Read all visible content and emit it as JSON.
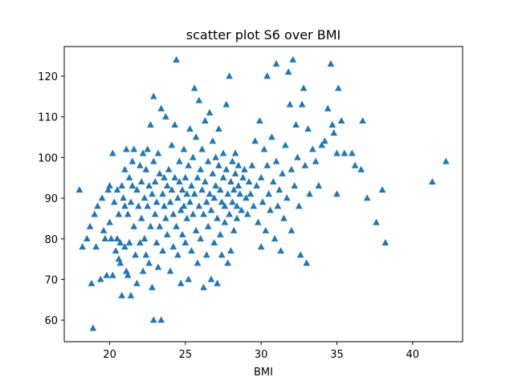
{
  "chart_data": {
    "type": "scatter",
    "title": "scatter plot S6 over BMI",
    "xlabel": "BMI",
    "ylabel": "",
    "xlim": [
      17.0,
      43.3
    ],
    "ylim": [
      54.7,
      127.3
    ],
    "xticks": [
      20,
      25,
      30,
      35,
      40
    ],
    "yticks": [
      60,
      70,
      80,
      90,
      100,
      110,
      120
    ],
    "xtick_labels": [
      "20",
      "25",
      "30",
      "35",
      "40"
    ],
    "ytick_labels": [
      "60",
      "70",
      "80",
      "90",
      "100",
      "110",
      "120"
    ],
    "marker": "triangle-up",
    "color": "#1f77b4",
    "grid": false,
    "points": [
      [
        18.0,
        92
      ],
      [
        18.2,
        78
      ],
      [
        18.5,
        80
      ],
      [
        18.7,
        83
      ],
      [
        18.8,
        69
      ],
      [
        18.9,
        58
      ],
      [
        19.0,
        86
      ],
      [
        19.1,
        78
      ],
      [
        19.2,
        88
      ],
      [
        19.4,
        70
      ],
      [
        19.5,
        90
      ],
      [
        19.6,
        82
      ],
      [
        19.7,
        80
      ],
      [
        19.8,
        71
      ],
      [
        19.9,
        92
      ],
      [
        20.0,
        84
      ],
      [
        20.0,
        93
      ],
      [
        20.1,
        80
      ],
      [
        20.2,
        71
      ],
      [
        20.2,
        101
      ],
      [
        20.3,
        89
      ],
      [
        20.4,
        77
      ],
      [
        20.5,
        92
      ],
      [
        20.5,
        80
      ],
      [
        20.6,
        75
      ],
      [
        20.6,
        86
      ],
      [
        20.7,
        74
      ],
      [
        20.7,
        79
      ],
      [
        20.8,
        93
      ],
      [
        20.8,
        66
      ],
      [
        20.9,
        90
      ],
      [
        21.0,
        88
      ],
      [
        21.0,
        78
      ],
      [
        21.0,
        97
      ],
      [
        21.1,
        102
      ],
      [
        21.1,
        72
      ],
      [
        21.2,
        86
      ],
      [
        21.2,
        71
      ],
      [
        21.3,
        95
      ],
      [
        21.3,
        79
      ],
      [
        21.4,
        66
      ],
      [
        21.4,
        89
      ],
      [
        21.5,
        99
      ],
      [
        21.5,
        93
      ],
      [
        21.6,
        102
      ],
      [
        21.6,
        83
      ],
      [
        21.7,
        76
      ],
      [
        21.8,
        92
      ],
      [
        21.8,
        69
      ],
      [
        21.9,
        88
      ],
      [
        22.0,
        98
      ],
      [
        22.0,
        79
      ],
      [
        22.1,
        94
      ],
      [
        22.1,
        85
      ],
      [
        22.2,
        101
      ],
      [
        22.2,
        72
      ],
      [
        22.3,
        90
      ],
      [
        22.3,
        80
      ],
      [
        22.4,
        97
      ],
      [
        22.4,
        76
      ],
      [
        22.5,
        88
      ],
      [
        22.5,
        102
      ],
      [
        22.6,
        93
      ],
      [
        22.6,
        74
      ],
      [
        22.7,
        83
      ],
      [
        22.7,
        108
      ],
      [
        22.8,
        91
      ],
      [
        22.8,
        68
      ],
      [
        22.9,
        99
      ],
      [
        22.9,
        115
      ],
      [
        22.9,
        60
      ],
      [
        23.0,
        86
      ],
      [
        23.0,
        94
      ],
      [
        23.1,
        79
      ],
      [
        23.1,
        89
      ],
      [
        23.2,
        73
      ],
      [
        23.2,
        101
      ],
      [
        23.3,
        96
      ],
      [
        23.3,
        83
      ],
      [
        23.4,
        112
      ],
      [
        23.4,
        60
      ],
      [
        23.5,
        91
      ],
      [
        23.5,
        77
      ],
      [
        23.6,
        88
      ],
      [
        23.6,
        95
      ],
      [
        23.7,
        85
      ],
      [
        23.7,
        110
      ],
      [
        23.8,
        93
      ],
      [
        23.8,
        81
      ],
      [
        23.9,
        97
      ],
      [
        24.0,
        89
      ],
      [
        24.0,
        72
      ],
      [
        24.1,
        92
      ],
      [
        24.1,
        103
      ],
      [
        24.2,
        86
      ],
      [
        24.2,
        78
      ],
      [
        24.3,
        95
      ],
      [
        24.3,
        108
      ],
      [
        24.4,
        124
      ],
      [
        24.4,
        83
      ],
      [
        24.5,
        90
      ],
      [
        24.5,
        76
      ],
      [
        24.6,
        94
      ],
      [
        24.6,
        99
      ],
      [
        24.7,
        87
      ],
      [
        24.7,
        69
      ],
      [
        24.8,
        92
      ],
      [
        24.8,
        81
      ],
      [
        24.9,
        102
      ],
      [
        24.9,
        88
      ],
      [
        25.0,
        95
      ],
      [
        25.0,
        79
      ],
      [
        25.1,
        91
      ],
      [
        25.1,
        85
      ],
      [
        25.2,
        98
      ],
      [
        25.2,
        70
      ],
      [
        25.3,
        89
      ],
      [
        25.3,
        107
      ],
      [
        25.4,
        93
      ],
      [
        25.4,
        77
      ],
      [
        25.5,
        100
      ],
      [
        25.5,
        86
      ],
      [
        25.6,
        117
      ],
      [
        25.6,
        91
      ],
      [
        25.7,
        82
      ],
      [
        25.7,
        105
      ],
      [
        25.8,
        95
      ],
      [
        25.8,
        74
      ],
      [
        25.9,
        88
      ],
      [
        25.9,
        114
      ],
      [
        26.0,
        97
      ],
      [
        26.0,
        80
      ],
      [
        26.1,
        92
      ],
      [
        26.1,
        102
      ],
      [
        26.2,
        86
      ],
      [
        26.2,
        68
      ],
      [
        26.3,
        94
      ],
      [
        26.3,
        109
      ],
      [
        26.4,
        89
      ],
      [
        26.4,
        76
      ],
      [
        26.5,
        99
      ],
      [
        26.5,
        83
      ],
      [
        26.6,
        91
      ],
      [
        26.6,
        111
      ],
      [
        26.7,
        87
      ],
      [
        26.7,
        70
      ],
      [
        26.8,
        96
      ],
      [
        26.8,
        104
      ],
      [
        26.9,
        90
      ],
      [
        26.9,
        79
      ],
      [
        27.0,
        93
      ],
      [
        27.0,
        100
      ],
      [
        27.1,
        85
      ],
      [
        27.1,
        69
      ],
      [
        27.2,
        98
      ],
      [
        27.2,
        107
      ],
      [
        27.3,
        92
      ],
      [
        27.3,
        81
      ],
      [
        27.4,
        89
      ],
      [
        27.4,
        76
      ],
      [
        27.5,
        95
      ],
      [
        27.5,
        101
      ],
      [
        27.6,
        88
      ],
      [
        27.6,
        84
      ],
      [
        27.7,
        113
      ],
      [
        27.7,
        97
      ],
      [
        27.8,
        91
      ],
      [
        27.8,
        74
      ],
      [
        27.9,
        120
      ],
      [
        27.9,
        86
      ],
      [
        28.0,
        94
      ],
      [
        28.0,
        77
      ],
      [
        28.1,
        99
      ],
      [
        28.1,
        89
      ],
      [
        28.2,
        92
      ],
      [
        28.2,
        82
      ],
      [
        28.3,
        96
      ],
      [
        28.3,
        101
      ],
      [
        28.4,
        88
      ],
      [
        28.4,
        85
      ],
      [
        28.5,
        93
      ],
      [
        28.5,
        98
      ],
      [
        28.6,
        91
      ],
      [
        28.7,
        87
      ],
      [
        28.8,
        95
      ],
      [
        28.9,
        97
      ],
      [
        29.0,
        90
      ],
      [
        29.1,
        86
      ],
      [
        29.2,
        94
      ],
      [
        29.3,
        91
      ],
      [
        29.4,
        98
      ],
      [
        29.5,
        88
      ],
      [
        29.6,
        104
      ],
      [
        29.7,
        93
      ],
      [
        29.8,
        84
      ],
      [
        29.9,
        109
      ],
      [
        30.0,
        78
      ],
      [
        30.0,
        95
      ],
      [
        30.1,
        89
      ],
      [
        30.2,
        102
      ],
      [
        30.3,
        82
      ],
      [
        30.4,
        98
      ],
      [
        30.4,
        120
      ],
      [
        30.5,
        91
      ],
      [
        30.6,
        87
      ],
      [
        30.7,
        105
      ],
      [
        30.8,
        94
      ],
      [
        30.9,
        80
      ],
      [
        31.0,
        123
      ],
      [
        31.0,
        99
      ],
      [
        31.1,
        88
      ],
      [
        31.2,
        92
      ],
      [
        31.3,
        77
      ],
      [
        31.4,
        96
      ],
      [
        31.5,
        85
      ],
      [
        31.6,
        103
      ],
      [
        31.7,
        90
      ],
      [
        31.8,
        121
      ],
      [
        31.9,
        113
      ],
      [
        32.0,
        97
      ],
      [
        32.0,
        82
      ],
      [
        32.1,
        124
      ],
      [
        32.2,
        93
      ],
      [
        32.3,
        108
      ],
      [
        32.4,
        100
      ],
      [
        32.5,
        88
      ],
      [
        32.6,
        76
      ],
      [
        32.7,
        113
      ],
      [
        32.8,
        117
      ],
      [
        32.9,
        98
      ],
      [
        33.0,
        74
      ],
      [
        33.1,
        107
      ],
      [
        33.2,
        91
      ],
      [
        33.4,
        102
      ],
      [
        33.6,
        99
      ],
      [
        33.8,
        93
      ],
      [
        34.0,
        103
      ],
      [
        34.2,
        104
      ],
      [
        34.4,
        112
      ],
      [
        34.6,
        123
      ],
      [
        34.7,
        108
      ],
      [
        34.8,
        106
      ],
      [
        35.0,
        91
      ],
      [
        35.0,
        101
      ],
      [
        35.1,
        117
      ],
      [
        35.3,
        109
      ],
      [
        35.5,
        101
      ],
      [
        36.0,
        101
      ],
      [
        36.2,
        98
      ],
      [
        36.7,
        109
      ],
      [
        36.6,
        97
      ],
      [
        37.0,
        90
      ],
      [
        37.6,
        84
      ],
      [
        38.0,
        92
      ],
      [
        38.2,
        79
      ],
      [
        41.3,
        94
      ],
      [
        42.2,
        99
      ]
    ]
  }
}
